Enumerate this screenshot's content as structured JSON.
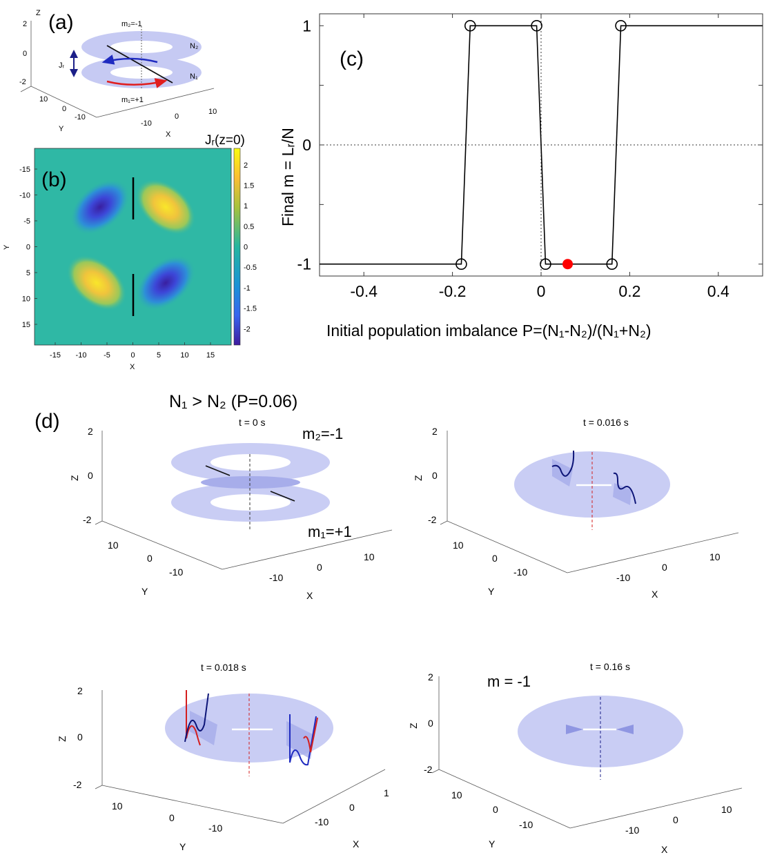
{
  "panel_labels": {
    "a": "(a)",
    "b": "(b)",
    "c": "(c)",
    "d": "(d)"
  },
  "panel_a": {
    "axis_labels": {
      "z": "Z",
      "y": "Y",
      "x": "X"
    },
    "z_ticks": [
      "2",
      "0",
      "-2"
    ],
    "y_ticks": [
      "10",
      "0",
      "-10"
    ],
    "x_ticks": [
      "-10",
      "0",
      "10"
    ],
    "ring_top_label": "m₂=-1",
    "ring_bottom_label": "m₁=+1",
    "n2_label": "N₂",
    "n1_label": "N₁",
    "jz_label": "Jᵣ"
  },
  "panel_b": {
    "colorbar_title": "Jᵣ(z=0)",
    "colorbar_ticks": [
      "2",
      "1.5",
      "1",
      "0.5",
      "0",
      "-0.5",
      "-1",
      "-1.5",
      "-2"
    ],
    "y_ticks": [
      "-15",
      "-10",
      "-5",
      "0",
      "5",
      "10",
      "15"
    ],
    "x_ticks": [
      "-15",
      "-10",
      "-5",
      "0",
      "5",
      "10",
      "15"
    ],
    "xlabel": "X",
    "ylabel": "Y"
  },
  "chart_data": {
    "type": "line",
    "title": "",
    "xlabel": "Initial population imbalance P=(N₁-N₂)/(N₁+N₂)",
    "ylabel": "Final  m = Lᵣ/N",
    "xlim": [
      -0.5,
      0.5
    ],
    "ylim": [
      -1.1,
      1.1
    ],
    "x_ticks": [
      "-0.4",
      "-0.2",
      "0",
      "0.2",
      "0.4"
    ],
    "y_ticks": [
      "1",
      "0",
      "-1"
    ],
    "series": [
      {
        "x": [
          -0.5,
          -0.18,
          -0.16,
          -0.01,
          0.01,
          0.16,
          0.18,
          0.5
        ],
        "y": [
          -1,
          -1,
          1,
          1,
          -1,
          -1,
          1,
          1
        ],
        "markers": [
          [
            -0.18,
            -1
          ],
          [
            -0.16,
            1
          ],
          [
            -0.01,
            1
          ],
          [
            0.01,
            -1
          ],
          [
            0.16,
            -1
          ],
          [
            0.18,
            1
          ]
        ]
      }
    ],
    "highlight_point": {
      "x": 0.06,
      "y": -1,
      "color": "#ff0000"
    },
    "dotted_lines": {
      "x": 0,
      "y": 0
    }
  },
  "panel_d": {
    "heading": "N₁ > N₂ (P=0.06)",
    "subplots": [
      {
        "title": "t = 0 s",
        "label_top": "m₂=-1",
        "label_bottom": "m₁=+1",
        "z_ticks": [
          "2",
          "0",
          "-2"
        ],
        "y_ticks": [
          "10",
          "0",
          "-10"
        ],
        "x_ticks": [
          "-10",
          "0",
          "10"
        ],
        "zlabel": "Z",
        "ylabel": "Y",
        "xlabel": "X"
      },
      {
        "title": "t = 0.016 s",
        "z_ticks": [
          "2",
          "0",
          "-2"
        ],
        "y_ticks": [
          "10",
          "0",
          "-10"
        ],
        "x_ticks": [
          "-10",
          "0",
          "10"
        ],
        "zlabel": "Z",
        "ylabel": "Y",
        "xlabel": "X"
      },
      {
        "title": "t = 0.018 s",
        "z_ticks": [
          "2",
          "0",
          "-2"
        ],
        "y_ticks": [
          "10",
          "0",
          "-10"
        ],
        "x_ticks": [
          "-10",
          "0",
          "1"
        ],
        "zlabel": "Z",
        "ylabel": "Y",
        "xlabel": "X"
      },
      {
        "title": "t = 0.16 s",
        "annotation": "m = -1",
        "z_ticks": [
          "2",
          "0",
          "-2"
        ],
        "y_ticks": [
          "10",
          "0",
          "-10"
        ],
        "x_ticks": [
          "-10",
          "0",
          "10"
        ],
        "zlabel": "Z",
        "ylabel": "Y",
        "xlabel": "X"
      }
    ]
  },
  "colors": {
    "ring_fill": "#c9cdf4",
    "ring_dark": "#a9aeea",
    "red": "#d41e1e",
    "blue": "#1f2bc0",
    "dark_blue": "#0c1477"
  }
}
